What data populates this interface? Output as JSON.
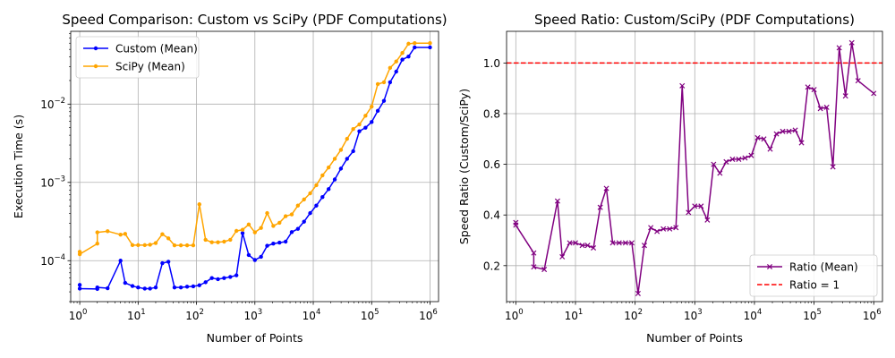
{
  "chart_data": [
    {
      "type": "line",
      "title": "Speed Comparison: Custom vs SciPy (PDF Computations)",
      "xlabel": "Number of Points",
      "ylabel": "Execution Time (s)",
      "xscale": "log",
      "yscale": "log",
      "xlim": [
        0.7,
        1400000
      ],
      "ylim": [
        3e-05,
        0.085
      ],
      "grid": true,
      "legend_position": "upper left",
      "x_ticks": [
        {
          "value": 1,
          "base": "10",
          "exp": "0"
        },
        {
          "value": 10,
          "base": "10",
          "exp": "1"
        },
        {
          "value": 100,
          "base": "10",
          "exp": "2"
        },
        {
          "value": 1000,
          "base": "10",
          "exp": "3"
        },
        {
          "value": 10000,
          "base": "10",
          "exp": "4"
        },
        {
          "value": 100000,
          "base": "10",
          "exp": "5"
        },
        {
          "value": 1000000,
          "base": "10",
          "exp": "6"
        }
      ],
      "y_ticks": [
        {
          "value": 0.0001,
          "base": "10",
          "exp": "−4"
        },
        {
          "value": 0.001,
          "base": "10",
          "exp": "−3"
        },
        {
          "value": 0.01,
          "base": "10",
          "exp": "−2"
        }
      ],
      "series": [
        {
          "name": "Custom (Mean)",
          "color": "#0000ff",
          "marker": "dot",
          "points": [
            [
              1,
              4.9e-05
            ],
            [
              1,
              4.4e-05
            ],
            [
              2,
              4.35e-05
            ],
            [
              2,
              4.55e-05
            ],
            [
              3,
              4.45e-05
            ],
            [
              5,
              0.0001
            ],
            [
              6,
              5.2e-05
            ],
            [
              8,
              4.75e-05
            ],
            [
              10,
              4.55e-05
            ],
            [
              13,
              4.4e-05
            ],
            [
              16,
              4.4e-05
            ],
            [
              20,
              4.55e-05
            ],
            [
              26,
              9.3e-05
            ],
            [
              33,
              9.7e-05
            ],
            [
              42,
              4.55e-05
            ],
            [
              54,
              4.55e-05
            ],
            [
              69,
              4.65e-05
            ],
            [
              88,
              4.7e-05
            ],
            [
              112,
              4.85e-05
            ],
            [
              143,
              5.3e-05
            ],
            [
              183,
              6e-05
            ],
            [
              233,
              5.8e-05
            ],
            [
              297,
              6e-05
            ],
            [
              379,
              6.2e-05
            ],
            [
              483,
              6.5e-05
            ],
            [
              615,
              0.000225
            ],
            [
              785,
              0.000118
            ],
            [
              1000,
              0.000102
            ],
            [
              1274,
              0.000112
            ],
            [
              1624,
              0.000155
            ],
            [
              2069,
              0.000165
            ],
            [
              2637,
              0.00017
            ],
            [
              3360,
              0.000175
            ],
            [
              4281,
              0.000232
            ],
            [
              5455,
              0.000255
            ],
            [
              6952,
              0.000315
            ],
            [
              8859,
              0.000405
            ],
            [
              11288,
              0.000505
            ],
            [
              14384,
              0.00065
            ],
            [
              18330,
              0.00082
            ],
            [
              23357,
              0.00109
            ],
            [
              29764,
              0.0015
            ],
            [
              37927,
              0.002
            ],
            [
              48329,
              0.0025
            ],
            [
              61585,
              0.0045
            ],
            [
              78476,
              0.005
            ],
            [
              100000,
              0.0059
            ],
            [
              127427,
              0.0082
            ],
            [
              162377,
              0.011
            ],
            [
              206913,
              0.019
            ],
            [
              263665,
              0.026
            ],
            [
              335982,
              0.037
            ],
            [
              428133,
              0.0405
            ],
            [
              545559,
              0.053
            ],
            [
              1000000,
              0.053
            ]
          ]
        },
        {
          "name": "SciPy (Mean)",
          "color": "#ffa500",
          "marker": "dot",
          "points": [
            [
              1,
              0.00013
            ],
            [
              1,
              0.000121
            ],
            [
              2,
              0.000165
            ],
            [
              2,
              0.00023
            ],
            [
              3,
              0.000238
            ],
            [
              5,
              0.000215
            ],
            [
              6,
              0.00022
            ],
            [
              8,
              0.000158
            ],
            [
              10,
              0.000158
            ],
            [
              13,
              0.000158
            ],
            [
              16,
              0.00016
            ],
            [
              20,
              0.000168
            ],
            [
              26,
              0.000218
            ],
            [
              33,
              0.000193
            ],
            [
              42,
              0.000157
            ],
            [
              54,
              0.000157
            ],
            [
              69,
              0.000157
            ],
            [
              88,
              0.000157
            ],
            [
              112,
              0.000525
            ],
            [
              143,
              0.000185
            ],
            [
              183,
              0.000172
            ],
            [
              233,
              0.000172
            ],
            [
              297,
              0.000175
            ],
            [
              379,
              0.000185
            ],
            [
              483,
              0.00024
            ],
            [
              615,
              0.000248
            ],
            [
              785,
              0.00029
            ],
            [
              1000,
              0.00023
            ],
            [
              1274,
              0.000262
            ],
            [
              1624,
              0.000405
            ],
            [
              2069,
              0.000278
            ],
            [
              2637,
              0.000305
            ],
            [
              3360,
              0.00037
            ],
            [
              4281,
              0.00039
            ],
            [
              5455,
              0.000505
            ],
            [
              6952,
              0.000605
            ],
            [
              8859,
              0.000725
            ],
            [
              11288,
              0.00092
            ],
            [
              14384,
              0.00123
            ],
            [
              18330,
              0.00155
            ],
            [
              23357,
              0.002
            ],
            [
              29764,
              0.0026
            ],
            [
              37927,
              0.0036
            ],
            [
              48329,
              0.0048
            ],
            [
              61585,
              0.0055
            ],
            [
              78476,
              0.0071
            ],
            [
              100000,
              0.0093
            ],
            [
              127427,
              0.018
            ],
            [
              162377,
              0.019
            ],
            [
              206913,
              0.029
            ],
            [
              263665,
              0.035
            ],
            [
              335982,
              0.045
            ],
            [
              428133,
              0.059
            ],
            [
              545559,
              0.06
            ],
            [
              1000000,
              0.06
            ]
          ]
        }
      ]
    },
    {
      "type": "line",
      "title": "Speed Ratio: Custom/SciPy (PDF Computations)",
      "xlabel": "Number of Points",
      "ylabel": "Speed Ratio (Custom/SciPy)",
      "xscale": "log",
      "yscale": "linear",
      "xlim": [
        0.7,
        1400000
      ],
      "ylim": [
        0.058,
        1.125
      ],
      "grid": true,
      "legend_position": "lower right",
      "x_ticks": [
        {
          "value": 1,
          "base": "10",
          "exp": "0"
        },
        {
          "value": 10,
          "base": "10",
          "exp": "1"
        },
        {
          "value": 100,
          "base": "10",
          "exp": "2"
        },
        {
          "value": 1000,
          "base": "10",
          "exp": "3"
        },
        {
          "value": 10000,
          "base": "10",
          "exp": "4"
        },
        {
          "value": 100000,
          "base": "10",
          "exp": "5"
        },
        {
          "value": 1000000,
          "base": "10",
          "exp": "6"
        }
      ],
      "y_ticks": [
        {
          "value": 0.2,
          "label": "0.2"
        },
        {
          "value": 0.4,
          "label": "0.4"
        },
        {
          "value": 0.6,
          "label": "0.6"
        },
        {
          "value": 0.8,
          "label": "0.8"
        },
        {
          "value": 1.0,
          "label": "1.0"
        }
      ],
      "series": [
        {
          "name": "Ratio (Mean)",
          "color": "#800080",
          "marker": "x",
          "points": [
            [
              1,
              0.37
            ],
            [
              1,
              0.36
            ],
            [
              2,
              0.25
            ],
            [
              2,
              0.195
            ],
            [
              3,
              0.185
            ],
            [
              5,
              0.455
            ],
            [
              6,
              0.235
            ],
            [
              8,
              0.29
            ],
            [
              10,
              0.29
            ],
            [
              13,
              0.28
            ],
            [
              16,
              0.28
            ],
            [
              20,
              0.27
            ],
            [
              26,
              0.43
            ],
            [
              33,
              0.505
            ],
            [
              42,
              0.29
            ],
            [
              54,
              0.29
            ],
            [
              69,
              0.29
            ],
            [
              88,
              0.29
            ],
            [
              112,
              0.09
            ],
            [
              143,
              0.28
            ],
            [
              183,
              0.35
            ],
            [
              233,
              0.335
            ],
            [
              297,
              0.345
            ],
            [
              379,
              0.345
            ],
            [
              483,
              0.35
            ],
            [
              615,
              0.91
            ],
            [
              785,
              0.41
            ],
            [
              1000,
              0.435
            ],
            [
              1274,
              0.435
            ],
            [
              1624,
              0.38
            ],
            [
              2069,
              0.6
            ],
            [
              2637,
              0.565
            ],
            [
              3360,
              0.61
            ],
            [
              4281,
              0.62
            ],
            [
              5455,
              0.62
            ],
            [
              6952,
              0.625
            ],
            [
              8859,
              0.635
            ],
            [
              11288,
              0.705
            ],
            [
              14384,
              0.7
            ],
            [
              18330,
              0.66
            ],
            [
              23357,
              0.72
            ],
            [
              29764,
              0.73
            ],
            [
              37927,
              0.73
            ],
            [
              48329,
              0.735
            ],
            [
              61585,
              0.685
            ],
            [
              78476,
              0.905
            ],
            [
              100000,
              0.895
            ],
            [
              127427,
              0.82
            ],
            [
              162377,
              0.825
            ],
            [
              206913,
              0.59
            ],
            [
              263665,
              1.06
            ],
            [
              335982,
              0.87
            ],
            [
              428133,
              1.08
            ],
            [
              545559,
              0.93
            ],
            [
              1000000,
              0.88
            ]
          ]
        },
        {
          "name": "Ratio = 1",
          "color": "#ff0000",
          "style": "dashed",
          "hline": 1.0
        }
      ]
    }
  ]
}
